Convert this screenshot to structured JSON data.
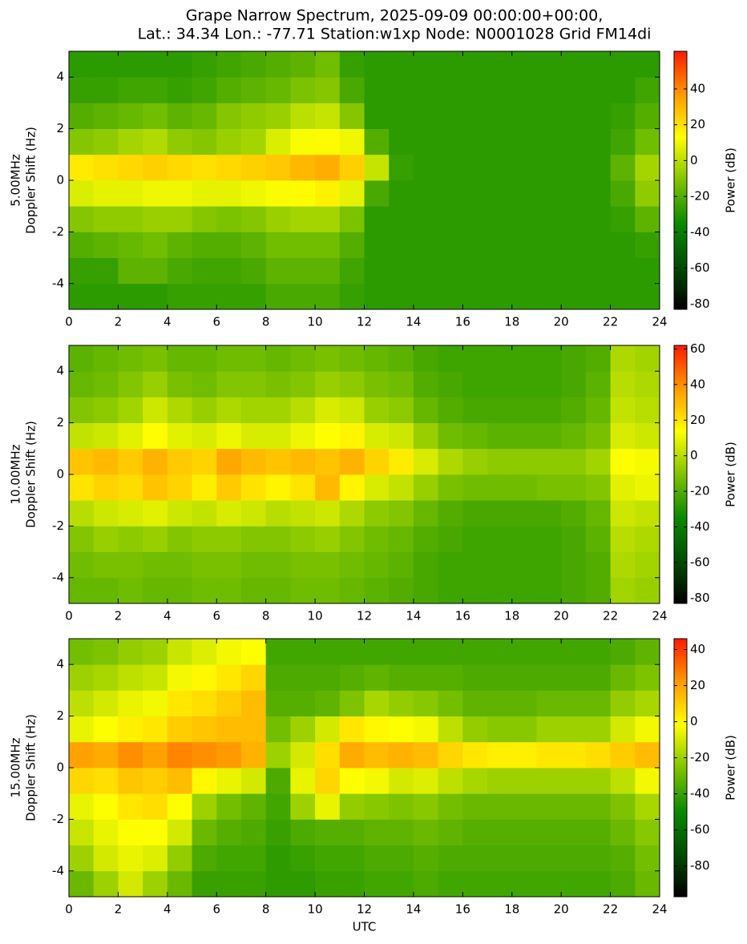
{
  "title": [
    "Grape Narrow Spectrum, 2025-09-09 00:00:00+00:00,",
    "Lat.: 34.34 Lon.: -77.71 Station:w1xp Node: N0001028 Grid FM14di"
  ],
  "chart_data": [
    {
      "type": "heatmap",
      "ylabel": [
        "5.00MHz",
        "Doppler Shift (Hz)"
      ],
      "x": [
        0,
        1,
        2,
        3,
        4,
        5,
        6,
        7,
        8,
        9,
        10,
        11,
        12,
        13,
        14,
        15,
        16,
        17,
        18,
        19,
        20,
        21,
        22,
        23,
        24
      ],
      "y": [
        -5,
        -4,
        -3,
        -2,
        -1,
        0,
        1,
        2,
        3,
        4,
        5
      ],
      "xlim": [
        0,
        24
      ],
      "xticks": [
        0,
        2,
        4,
        6,
        8,
        10,
        12,
        14,
        16,
        18,
        20,
        22,
        24
      ],
      "ylim": [
        -5,
        5
      ],
      "yticks": [
        -4,
        -2,
        0,
        2,
        4
      ],
      "values": [
        [
          -28,
          -28,
          -28,
          -28,
          -26,
          -26,
          -26,
          -26,
          -22,
          -22,
          -22,
          -26,
          -28,
          -28,
          -28,
          -28,
          -28,
          -28,
          -28,
          -28,
          -28,
          -28,
          -28,
          -28
        ],
        [
          -26,
          -26,
          -18,
          -18,
          -22,
          -24,
          -24,
          -22,
          -18,
          -18,
          -18,
          -24,
          -28,
          -28,
          -28,
          -28,
          -28,
          -28,
          -28,
          -28,
          -28,
          -28,
          -28,
          -28
        ],
        [
          -20,
          -18,
          -16,
          -14,
          -18,
          -20,
          -20,
          -18,
          -14,
          -14,
          -14,
          -20,
          -28,
          -28,
          -28,
          -28,
          -28,
          -28,
          -28,
          -28,
          -28,
          -28,
          -28,
          -26
        ],
        [
          -10,
          -8,
          -8,
          -6,
          -6,
          -10,
          -12,
          -10,
          -6,
          -4,
          -4,
          -12,
          -28,
          -28,
          -28,
          -28,
          -28,
          -28,
          -28,
          -28,
          -28,
          -28,
          -26,
          -18
        ],
        [
          6,
          8,
          8,
          10,
          10,
          8,
          8,
          10,
          12,
          14,
          16,
          8,
          -22,
          -28,
          -28,
          -28,
          -28,
          -28,
          -28,
          -28,
          -28,
          -28,
          -22,
          -8
        ],
        [
          18,
          20,
          22,
          24,
          22,
          20,
          22,
          24,
          26,
          30,
          32,
          24,
          2,
          -26,
          -28,
          -28,
          -28,
          -28,
          -28,
          -28,
          -28,
          -28,
          -18,
          -4
        ],
        [
          -10,
          -8,
          -4,
          -2,
          -8,
          -10,
          -6,
          -4,
          6,
          12,
          14,
          10,
          -20,
          -28,
          -28,
          -28,
          -28,
          -28,
          -28,
          -28,
          -28,
          -28,
          -24,
          -14
        ],
        [
          -20,
          -18,
          -16,
          -14,
          -18,
          -16,
          -10,
          -8,
          -6,
          0,
          2,
          -10,
          -28,
          -28,
          -28,
          -28,
          -28,
          -28,
          -28,
          -28,
          -28,
          -28,
          -26,
          -20
        ],
        [
          -26,
          -26,
          -24,
          -24,
          -26,
          -24,
          -20,
          -18,
          -16,
          -12,
          -10,
          -22,
          -28,
          -28,
          -28,
          -28,
          -28,
          -28,
          -28,
          -28,
          -28,
          -28,
          -28,
          -24
        ],
        [
          -28,
          -28,
          -28,
          -28,
          -28,
          -26,
          -24,
          -22,
          -20,
          -18,
          -14,
          -26,
          -28,
          -28,
          -28,
          -28,
          -28,
          -28,
          -28,
          -28,
          -28,
          -28,
          -28,
          -28
        ]
      ],
      "cmap": [
        "#000000",
        "#004d00",
        "#0a8a00",
        "#80c400",
        "#ffff00",
        "#ff9900",
        "#ff1a00"
      ],
      "colorbar": {
        "label": "Power (dB)",
        "lim": [
          -83,
          61
        ],
        "ticks": [
          -80,
          -60,
          -40,
          -20,
          0,
          20,
          40
        ]
      }
    },
    {
      "type": "heatmap",
      "ylabel": [
        "10.00MHz",
        "Doppler Shift (Hz)"
      ],
      "x": [
        0,
        1,
        2,
        3,
        4,
        5,
        6,
        7,
        8,
        9,
        10,
        11,
        12,
        13,
        14,
        15,
        16,
        17,
        18,
        19,
        20,
        21,
        22,
        23,
        24
      ],
      "y": [
        -5,
        -4,
        -3,
        -2,
        -1,
        0,
        1,
        2,
        3,
        4,
        5
      ],
      "xlim": [
        0,
        24
      ],
      "xticks": [
        0,
        2,
        4,
        6,
        8,
        10,
        12,
        14,
        16,
        18,
        20,
        22,
        24
      ],
      "ylim": [
        -5,
        5
      ],
      "yticks": [
        -4,
        -2,
        0,
        2,
        4
      ],
      "values": [
        [
          -16,
          -16,
          -14,
          -16,
          -16,
          -14,
          -14,
          -16,
          -16,
          -14,
          -14,
          -16,
          -18,
          -20,
          -22,
          -24,
          -24,
          -24,
          -24,
          -24,
          -22,
          -20,
          -4,
          -6
        ],
        [
          -14,
          -12,
          -12,
          -14,
          -14,
          -12,
          -12,
          -14,
          -14,
          -12,
          -12,
          -14,
          -16,
          -18,
          -22,
          -24,
          -24,
          -24,
          -24,
          -24,
          -22,
          -20,
          -2,
          -4
        ],
        [
          -10,
          -6,
          -8,
          -6,
          -10,
          -8,
          -8,
          -10,
          -10,
          -8,
          -6,
          -10,
          -14,
          -16,
          -20,
          -22,
          -24,
          -24,
          -24,
          -24,
          -22,
          -18,
          0,
          -2
        ],
        [
          0,
          4,
          6,
          8,
          4,
          2,
          6,
          4,
          0,
          2,
          4,
          -2,
          -8,
          -10,
          -16,
          -20,
          -22,
          -22,
          -22,
          -22,
          -20,
          -16,
          4,
          2
        ],
        [
          20,
          24,
          22,
          28,
          24,
          18,
          26,
          20,
          16,
          20,
          30,
          16,
          6,
          2,
          -6,
          -12,
          -14,
          -14,
          -14,
          -12,
          -12,
          -10,
          8,
          10
        ],
        [
          28,
          30,
          26,
          32,
          26,
          24,
          34,
          30,
          28,
          30,
          28,
          32,
          24,
          18,
          6,
          -2,
          -6,
          -8,
          -8,
          -8,
          -8,
          -4,
          14,
          12
        ],
        [
          2,
          4,
          8,
          14,
          8,
          6,
          10,
          6,
          6,
          10,
          14,
          16,
          6,
          4,
          -6,
          -14,
          -16,
          -18,
          -18,
          -18,
          -16,
          -12,
          6,
          4
        ],
        [
          -10,
          -8,
          -4,
          4,
          -2,
          -6,
          -2,
          -4,
          -4,
          0,
          6,
          4,
          -6,
          -8,
          -16,
          -20,
          -22,
          -22,
          -22,
          -22,
          -20,
          -16,
          2,
          0
        ],
        [
          -16,
          -14,
          -10,
          -6,
          -12,
          -14,
          -10,
          -10,
          -12,
          -10,
          -6,
          -8,
          -12,
          -14,
          -20,
          -22,
          -24,
          -24,
          -24,
          -24,
          -22,
          -18,
          0,
          -2
        ],
        [
          -18,
          -16,
          -14,
          -12,
          -16,
          -16,
          -14,
          -14,
          -16,
          -14,
          -12,
          -14,
          -16,
          -18,
          -22,
          -24,
          -24,
          -24,
          -24,
          -24,
          -22,
          -20,
          -2,
          -4
        ]
      ],
      "cmap": [
        "#000000",
        "#004d00",
        "#0a8a00",
        "#80c400",
        "#ffff00",
        "#ff9900",
        "#ff1a00"
      ],
      "colorbar": {
        "label": "Power (dB)",
        "lim": [
          -83,
          62
        ],
        "ticks": [
          -80,
          -60,
          -40,
          -20,
          0,
          20,
          40,
          60
        ]
      }
    },
    {
      "type": "heatmap",
      "ylabel": [
        "15.00MHz",
        "Doppler Shift (Hz)"
      ],
      "xlabel": "UTC",
      "x": [
        0,
        1,
        2,
        3,
        4,
        5,
        6,
        7,
        8,
        9,
        10,
        11,
        12,
        13,
        14,
        15,
        16,
        17,
        18,
        19,
        20,
        21,
        22,
        23,
        24
      ],
      "y": [
        -5,
        -4,
        -3,
        -2,
        -1,
        0,
        1,
        2,
        3,
        4,
        5
      ],
      "xlim": [
        0,
        24
      ],
      "xticks": [
        0,
        2,
        4,
        6,
        8,
        10,
        12,
        14,
        16,
        18,
        20,
        22,
        24
      ],
      "ylim": [
        -5,
        5
      ],
      "yticks": [
        -4,
        -2,
        0,
        2,
        4
      ],
      "values": [
        [
          -30,
          -20,
          -10,
          -20,
          -30,
          -40,
          -40,
          -40,
          -42,
          -42,
          -40,
          -40,
          -38,
          -38,
          -36,
          -38,
          -38,
          -38,
          -38,
          -38,
          -38,
          -38,
          -36,
          -30
        ],
        [
          -20,
          -10,
          -6,
          -8,
          -22,
          -36,
          -38,
          -38,
          -42,
          -40,
          -38,
          -38,
          -36,
          -36,
          -34,
          -36,
          -36,
          -36,
          -36,
          -36,
          -36,
          -36,
          -34,
          -28
        ],
        [
          -12,
          -6,
          -2,
          -2,
          -10,
          -30,
          -34,
          -36,
          -40,
          -36,
          -34,
          -34,
          -32,
          -32,
          -30,
          -32,
          -34,
          -34,
          -34,
          -34,
          -34,
          -34,
          -30,
          -24
        ],
        [
          -6,
          -2,
          4,
          6,
          -2,
          -20,
          -28,
          -32,
          -38,
          -20,
          -6,
          -22,
          -24,
          -26,
          -24,
          -28,
          -30,
          -30,
          -30,
          -30,
          -30,
          -30,
          -26,
          -18
        ],
        [
          8,
          6,
          12,
          10,
          14,
          0,
          -6,
          -10,
          -36,
          -6,
          8,
          -2,
          -4,
          -10,
          -8,
          -14,
          -18,
          -20,
          -20,
          -20,
          -20,
          -20,
          -14,
          -4
        ],
        [
          20,
          18,
          24,
          20,
          26,
          24,
          22,
          16,
          -20,
          -10,
          6,
          18,
          14,
          16,
          14,
          8,
          4,
          2,
          2,
          4,
          4,
          6,
          10,
          14
        ],
        [
          -6,
          -2,
          2,
          4,
          10,
          12,
          14,
          14,
          -28,
          -20,
          -10,
          4,
          0,
          -2,
          -4,
          -14,
          -22,
          -24,
          -24,
          -20,
          -20,
          -20,
          -10,
          -4
        ],
        [
          -14,
          -10,
          -6,
          -4,
          4,
          6,
          10,
          14,
          -34,
          -34,
          -32,
          -26,
          -18,
          -22,
          -24,
          -28,
          -32,
          -32,
          -32,
          -30,
          -30,
          -30,
          -22,
          -18
        ],
        [
          -20,
          -18,
          -14,
          -12,
          -4,
          0,
          4,
          8,
          -36,
          -36,
          -36,
          -34,
          -32,
          -34,
          -34,
          -34,
          -36,
          -36,
          -36,
          -36,
          -36,
          -36,
          -30,
          -26
        ],
        [
          -28,
          -26,
          -22,
          -20,
          -12,
          -8,
          -4,
          -2,
          -38,
          -38,
          -38,
          -38,
          -38,
          -38,
          -38,
          -38,
          -38,
          -38,
          -38,
          -38,
          -38,
          -38,
          -36,
          -32
        ]
      ],
      "cmap": [
        "#000000",
        "#004d00",
        "#0a8a00",
        "#80c400",
        "#ffff00",
        "#ff9900",
        "#ff1a00"
      ],
      "colorbar": {
        "label": "Power (dB)",
        "lim": [
          -97,
          46
        ],
        "ticks": [
          -80,
          -60,
          -40,
          -20,
          0,
          20,
          40
        ]
      }
    }
  ]
}
